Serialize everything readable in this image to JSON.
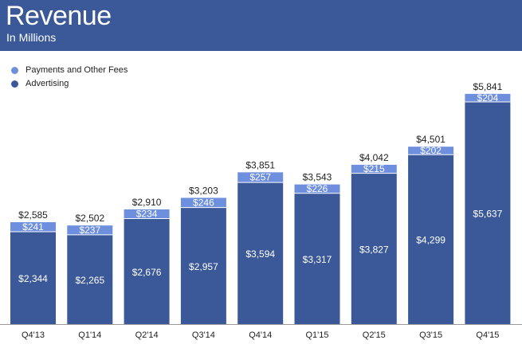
{
  "title": "Revenue",
  "subtitle": "In Millions",
  "colors": {
    "header_bg": "#3b5998",
    "advertising": "#3b5998",
    "payments": "#6d8fdd",
    "label_light": "#ffffff",
    "label_dark": "#222222",
    "axis": "#999999"
  },
  "chart_data": {
    "type": "bar",
    "stacked": true,
    "title": "Revenue",
    "subtitle": "In Millions",
    "xlabel": "",
    "ylabel": "",
    "ylim": [
      0,
      6000
    ],
    "grid": false,
    "legend_position": "top-left",
    "categories": [
      "Q4'13",
      "Q1'14",
      "Q2'14",
      "Q3'14",
      "Q4'14",
      "Q1'15",
      "Q2'15",
      "Q3'15",
      "Q4'15"
    ],
    "series": [
      {
        "name": "Advertising",
        "values": [
          2344,
          2265,
          2676,
          2957,
          3594,
          3317,
          3827,
          4299,
          5637
        ],
        "labels": [
          "$2,344",
          "$2,265",
          "$2,676",
          "$2,957",
          "$3,594",
          "$3,317",
          "$3,827",
          "$4,299",
          "$5,637"
        ]
      },
      {
        "name": "Payments and Other Fees",
        "values": [
          241,
          237,
          234,
          246,
          257,
          226,
          215,
          202,
          204
        ],
        "labels": [
          "$241",
          "$237",
          "$234",
          "$246",
          "$257",
          "$226",
          "$215",
          "$202",
          "$204"
        ]
      }
    ],
    "totals": [
      2585,
      2502,
      2910,
      3203,
      3851,
      3543,
      4042,
      4501,
      5841
    ],
    "total_labels": [
      "$2,585",
      "$2,502",
      "$2,910",
      "$3,203",
      "$3,851",
      "$3,543",
      "$4,042",
      "$4,501",
      "$5,841"
    ]
  },
  "legend": {
    "items": [
      {
        "label": "Payments and Other Fees",
        "color": "#6d8fdd"
      },
      {
        "label": "Advertising",
        "color": "#3b5998"
      }
    ]
  }
}
